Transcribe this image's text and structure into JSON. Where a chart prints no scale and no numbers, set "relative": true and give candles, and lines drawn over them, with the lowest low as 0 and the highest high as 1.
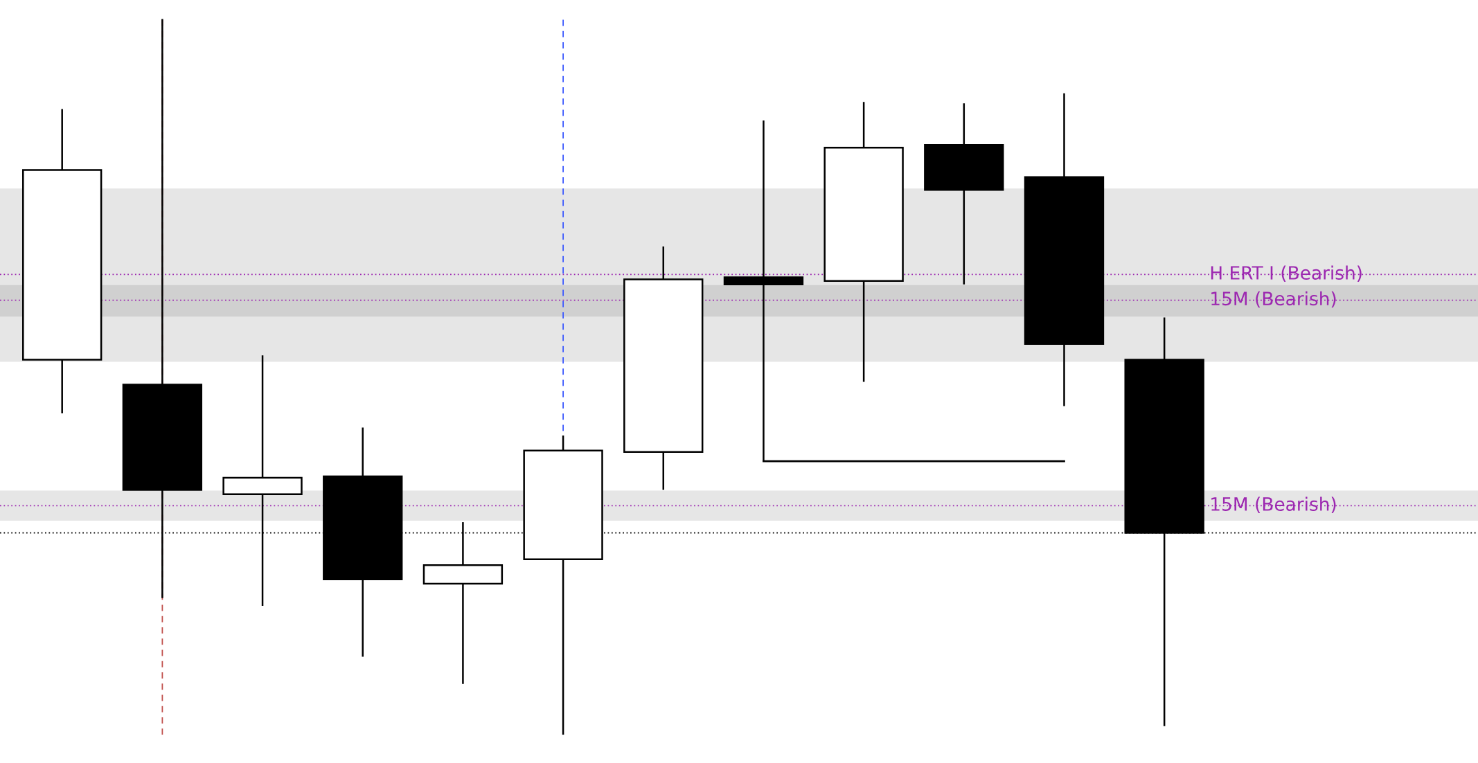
{
  "chart_data": {
    "type": "candlestick",
    "relative": true,
    "categories": [
      null,
      null,
      null,
      null,
      null,
      null,
      null,
      null,
      null,
      null,
      null,
      null
    ],
    "ohlc": [
      [
        0.524,
        0.874,
        0.449,
        0.789
      ],
      [
        0.489,
        1.0,
        0.191,
        0.342
      ],
      [
        0.336,
        0.53,
        0.18,
        0.359
      ],
      [
        0.361,
        0.429,
        0.109,
        0.217
      ],
      [
        0.211,
        0.297,
        0.071,
        0.237
      ],
      [
        0.245,
        0.418,
        0.0,
        0.397
      ],
      [
        0.395,
        0.682,
        0.342,
        0.636
      ],
      [
        0.639,
        0.858,
        0.382,
        0.629
      ],
      [
        0.634,
        0.884,
        0.493,
        0.82
      ],
      [
        0.824,
        0.882,
        0.629,
        0.761
      ],
      [
        0.779,
        0.896,
        0.459,
        0.546
      ],
      [
        0.524,
        0.583,
        0.012,
        0.282
      ]
    ],
    "series": [
      {
        "type": "line",
        "color": "#000000",
        "values": [
          null,
          null,
          null,
          null,
          null,
          null,
          null,
          0.382,
          0.382,
          0.382,
          0.382,
          null
        ]
      }
    ],
    "bands": [
      {
        "axis": "y",
        "from": 0.521,
        "to": 0.763,
        "color": "#e6e6e6"
      },
      {
        "axis": "y",
        "from": 0.584,
        "to": 0.628,
        "color": "#d0d0d0"
      },
      {
        "axis": "y",
        "from": 0.299,
        "to": 0.341,
        "color": "#e6e6e6"
      }
    ],
    "ref_lines": [
      {
        "axis": "y",
        "value": 0.643,
        "label": "H ERT I (Bearish)",
        "color": "#9c27b0",
        "line_style": "dotted"
      },
      {
        "axis": "y",
        "value": 0.607,
        "label": "15M (Bearish)",
        "color": "#9c27b0",
        "line_style": "dotted"
      },
      {
        "axis": "y",
        "value": 0.32,
        "label": "15M (Bearish)",
        "color": "#9c27b0",
        "line_style": "dotted"
      },
      {
        "axis": "y",
        "value": 0.282,
        "color": "#000000",
        "line_style": "dotted"
      }
    ],
    "grid": false,
    "legend": false
  }
}
